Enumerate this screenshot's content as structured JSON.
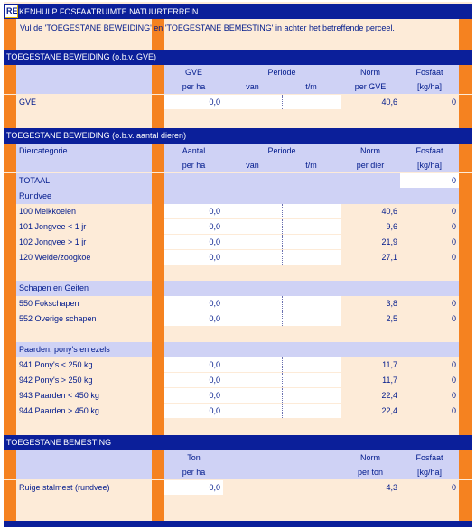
{
  "title": "REKENHULP FOSFAATRUIMTE NATUURTERREIN",
  "title_cell_fragment": "RE",
  "title_rest": "KENHULP FOSFAATRUIMTE NATUURTERREIN",
  "instruction": "Vul de 'TOEGESTANE BEWEIDING' en 'TOEGESTANE BEMESTING' in achter het betreffende perceel.",
  "colors": {
    "navy": "#0b1f9a",
    "orange": "#f58220",
    "peach": "#fdebd8",
    "lavender": "#cfd2f5",
    "text": "#001a8c"
  },
  "sec1": {
    "title": "TOEGESTANE BEWEIDING (o.b.v. GVE)",
    "h_qty1": "GVE",
    "h_qty2": "per ha",
    "h_periode": "Periode",
    "h_van": "van",
    "h_tm": "t/m",
    "h_norm1": "Norm",
    "h_norm2": "per GVE",
    "h_fos1": "Fosfaat",
    "h_fos2": "[kg/ha]",
    "row": {
      "label": "GVE",
      "qty": "0,0",
      "norm": "40,6",
      "fos": "0"
    }
  },
  "sec2": {
    "title": "TOEGESTANE BEWEIDING (o.b.v. aantal dieren)",
    "h_cat": "Diercategorie",
    "h_qty1": "Aantal",
    "h_qty2": "per ha",
    "h_periode": "Periode",
    "h_van": "van",
    "h_tm": "t/m",
    "h_norm1": "Norm",
    "h_norm2": "per dier",
    "h_fos1": "Fosfaat",
    "h_fos2": "[kg/ha]",
    "totaal_label": "TOTAAL",
    "totaal_value": "0",
    "groups": [
      {
        "name": "Rundvee",
        "rows": [
          {
            "label": "100 Melkkoeien",
            "qty": "0,0",
            "norm": "40,6",
            "fos": "0"
          },
          {
            "label": "101 Jongvee < 1 jr",
            "qty": "0,0",
            "norm": "9,6",
            "fos": "0"
          },
          {
            "label": "102 Jongvee > 1 jr",
            "qty": "0,0",
            "norm": "21,9",
            "fos": "0"
          },
          {
            "label": "120 Weide/zoogkoe",
            "qty": "0,0",
            "norm": "27,1",
            "fos": "0"
          }
        ]
      },
      {
        "name": "Schapen en Geiten",
        "rows": [
          {
            "label": "550 Fokschapen",
            "qty": "0,0",
            "norm": "3,8",
            "fos": "0"
          },
          {
            "label": "552 Overige schapen",
            "qty": "0,0",
            "norm": "2,5",
            "fos": "0"
          }
        ]
      },
      {
        "name": "Paarden, pony's en ezels",
        "rows": [
          {
            "label": "941 Pony's < 250 kg",
            "qty": "0,0",
            "norm": "11,7",
            "fos": "0"
          },
          {
            "label": "942 Pony's > 250 kg",
            "qty": "0,0",
            "norm": "11,7",
            "fos": "0"
          },
          {
            "label": "943 Paarden < 450 kg",
            "qty": "0,0",
            "norm": "22,4",
            "fos": "0"
          },
          {
            "label": "944 Paarden > 450 kg",
            "qty": "0,0",
            "norm": "22,4",
            "fos": "0"
          }
        ]
      }
    ]
  },
  "sec3": {
    "title": "TOEGESTANE BEMESTING",
    "h_qty1": "Ton",
    "h_qty2": "per ha",
    "h_norm1": "Norm",
    "h_norm2": "per ton",
    "h_fos1": "Fosfaat",
    "h_fos2": "[kg/ha]",
    "row": {
      "label": "Ruige stalmest (rundvee)",
      "qty": "0,0",
      "norm": "4,3",
      "fos": "0"
    }
  }
}
